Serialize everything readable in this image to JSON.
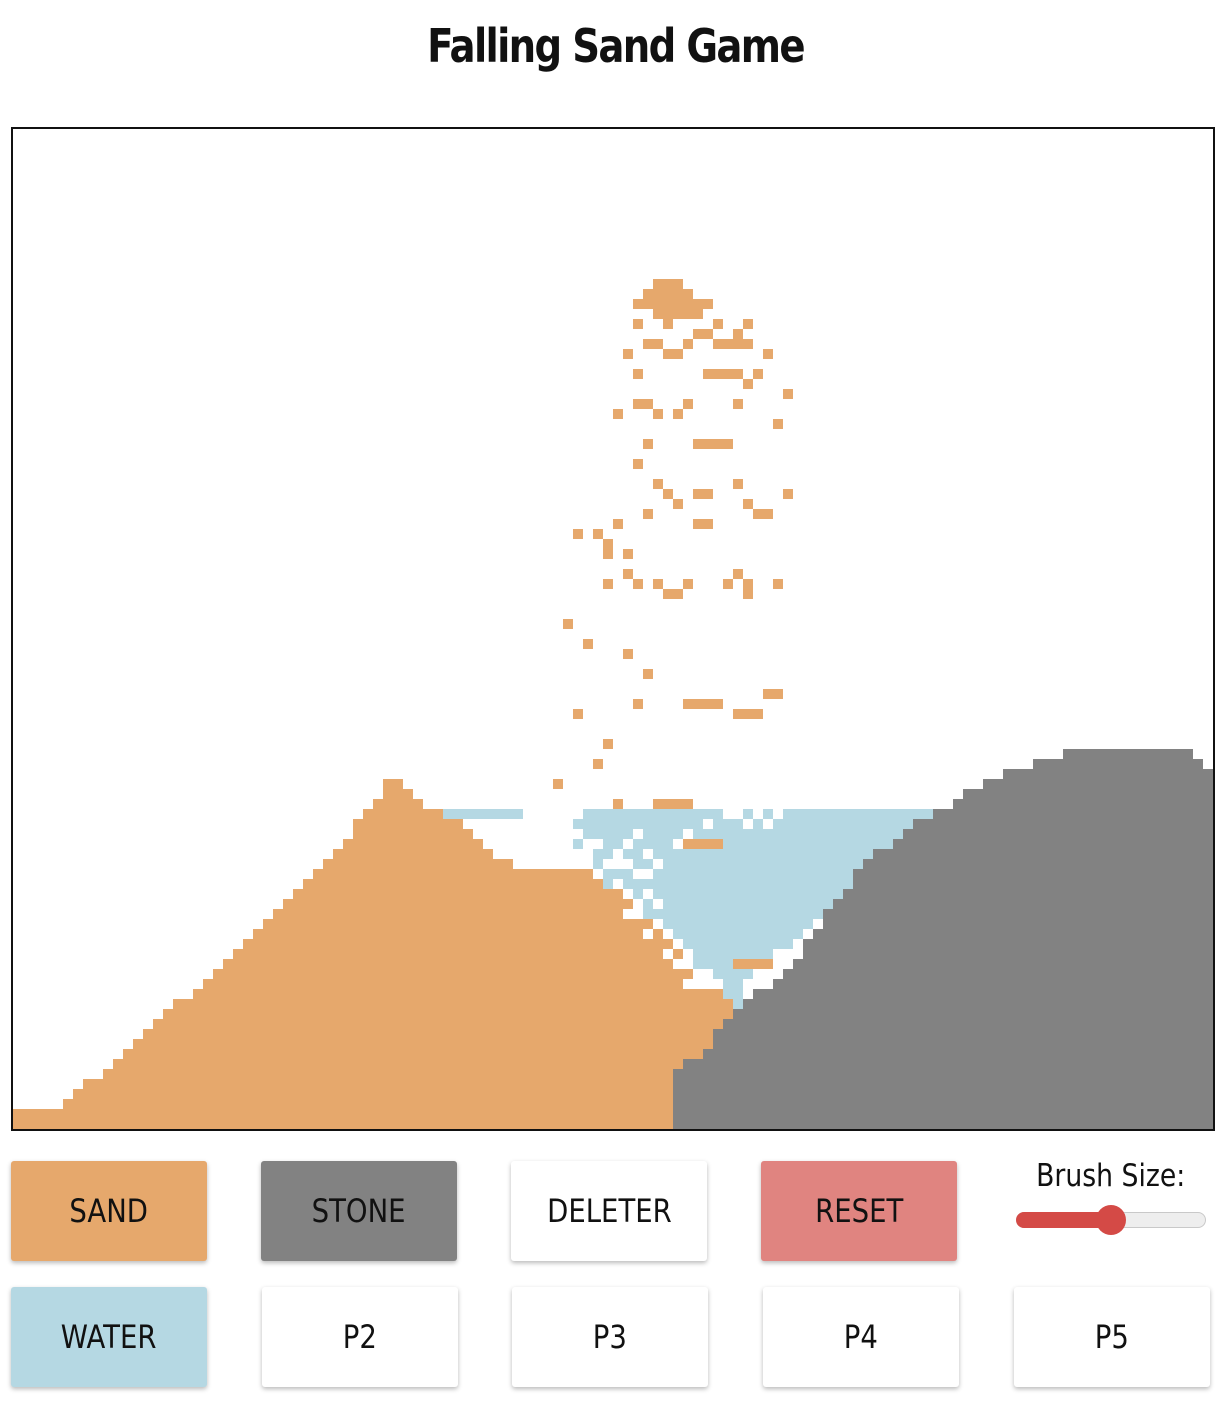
{
  "title": "Falling Sand Game",
  "canvas": {
    "grid_columns": 120,
    "grid_rows": 100
  },
  "tools": [
    {
      "id": "sand",
      "label": "SAND",
      "color": "#E6A86C"
    },
    {
      "id": "stone",
      "label": "STONE",
      "color": "#828282"
    },
    {
      "id": "deleter",
      "label": "DELETER",
      "color": "#FFFFFF"
    },
    {
      "id": "reset",
      "label": "RESET",
      "color": "#E08480"
    },
    {
      "id": "water",
      "label": "WATER",
      "color": "#B5D8E3"
    },
    {
      "id": "p2",
      "label": "P2",
      "color": "#FFFFFF"
    },
    {
      "id": "p3",
      "label": "P3",
      "color": "#FFFFFF"
    },
    {
      "id": "p4",
      "label": "P4",
      "color": "#FFFFFF"
    },
    {
      "id": "p5",
      "label": "P5",
      "color": "#FFFFFF"
    }
  ],
  "brush": {
    "label": "Brush Size:",
    "value_fraction": 0.5,
    "color": "#D44A46"
  },
  "colors": {
    "sand": "#E6A86C",
    "stone": "#828282",
    "water": "#B5D8E3",
    "empty": "#FFFFFF"
  }
}
